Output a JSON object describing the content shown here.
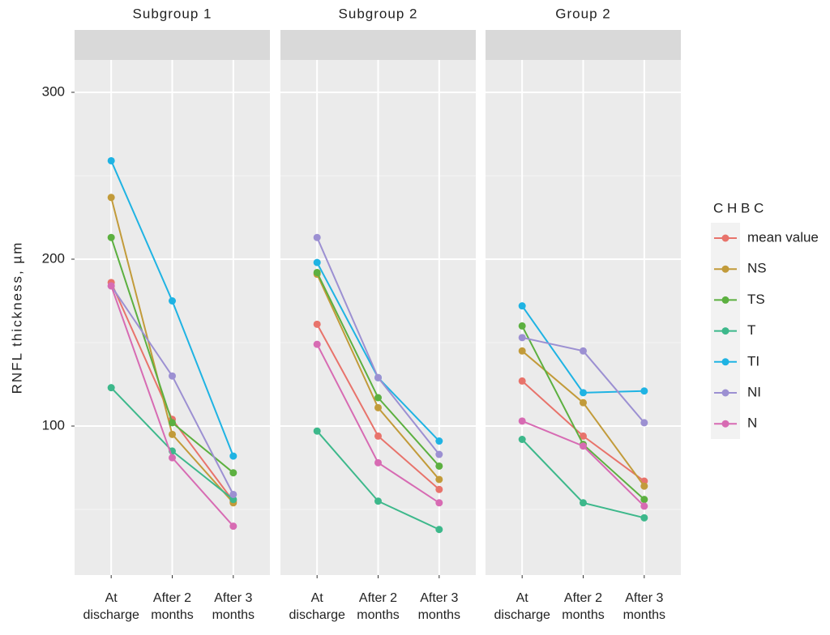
{
  "chart_data": {
    "type": "line",
    "ylabel": "RNFL thickness, µm",
    "legend_title": "C H B C",
    "legend": "right",
    "panels": [
      "Subgroup 1",
      "Subgroup 2",
      "Group 2"
    ],
    "categories": [
      "At discharge",
      "After 2 months",
      "After 3 months"
    ],
    "ylim": [
      10.7,
      319.4
    ],
    "yticks": [
      100,
      200,
      300
    ],
    "minor_yticks": [
      50,
      150,
      250
    ],
    "grid": true,
    "series": [
      {
        "name": "mean value",
        "color": "#e8736b",
        "values": [
          [
            186,
            104,
            55
          ],
          [
            161,
            94,
            62
          ],
          [
            127,
            94,
            67
          ]
        ]
      },
      {
        "name": "NS",
        "color": "#c29b3a",
        "values": [
          [
            237,
            95,
            54
          ],
          [
            191,
            111,
            68
          ],
          [
            145,
            114,
            64
          ]
        ]
      },
      {
        "name": "TS",
        "color": "#5cb040",
        "values": [
          [
            213,
            102,
            72
          ],
          [
            192,
            117,
            76
          ],
          [
            160,
            89,
            56
          ]
        ]
      },
      {
        "name": "T",
        "color": "#3db88b",
        "values": [
          [
            123,
            85,
            56
          ],
          [
            97,
            55,
            38
          ],
          [
            92,
            54,
            45
          ]
        ]
      },
      {
        "name": "TI",
        "color": "#1fb3e3",
        "values": [
          [
            259,
            175,
            82
          ],
          [
            198,
            129,
            91
          ],
          [
            172,
            120,
            121
          ]
        ]
      },
      {
        "name": "NI",
        "color": "#9c90d2",
        "values": [
          [
            184,
            130,
            59
          ],
          [
            213,
            129,
            83
          ],
          [
            153,
            145,
            102
          ]
        ]
      },
      {
        "name": "N",
        "color": "#d76bb3",
        "values": [
          [
            184,
            81,
            40
          ],
          [
            149,
            78,
            54
          ],
          [
            103,
            88,
            52
          ]
        ]
      }
    ]
  }
}
